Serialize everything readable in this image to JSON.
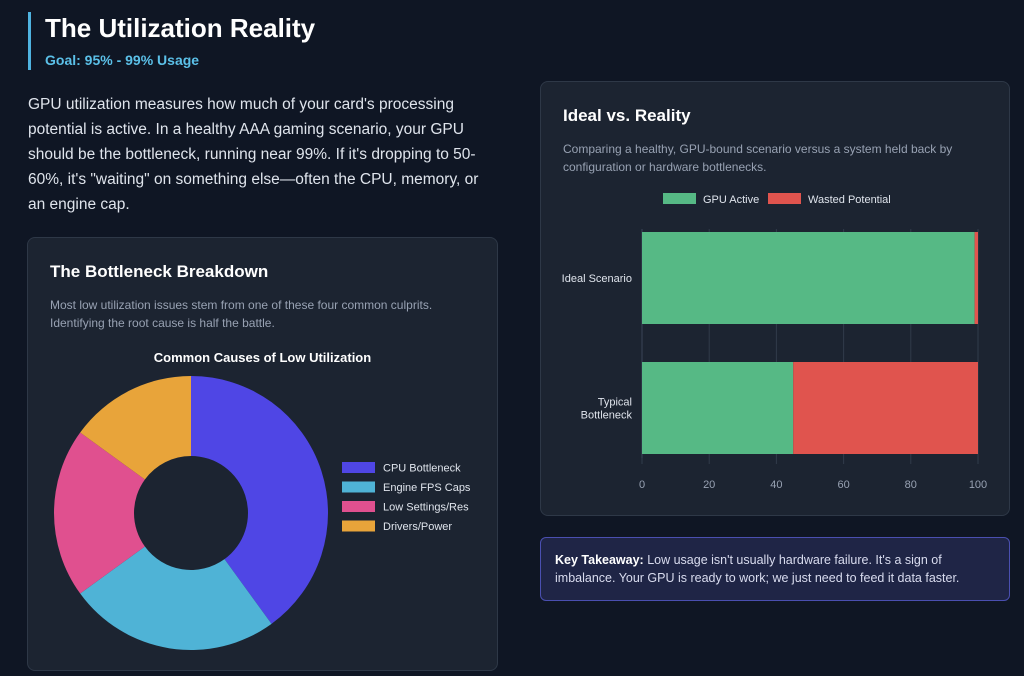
{
  "header": {
    "title": "The Utilization Reality",
    "goal": "Goal: 95% - 99% Usage"
  },
  "intro": "GPU utilization measures how much of your card's processing potential is active. In a healthy AAA gaming scenario, your GPU should be the bottleneck, running near 99%. If it's dropping to 50-60%, it's \"waiting\" on something else—often the CPU, memory, or an engine cap.",
  "breakdown": {
    "title": "The Bottleneck Breakdown",
    "description": "Most low utilization issues stem from one of these four common culprits. Identifying the root cause is half the battle."
  },
  "ideal": {
    "title": "Ideal vs. Reality",
    "description": "Comparing a healthy, GPU-bound scenario versus a system held back by configuration or hardware bottlenecks."
  },
  "takeaway": {
    "label": "Key Takeaway:",
    "text": " Low usage isn't usually hardware failure. It's a sign of imbalance. Your GPU is ready to work; we just need to feed it data faster."
  },
  "colors": {
    "accent": "#4fb3e0",
    "cpu": "#4f46e5",
    "engine": "#4fb3d6",
    "settings": "#e0508f",
    "drivers": "#e8a43a",
    "active": "#56b985",
    "wasted": "#e0544e"
  },
  "chart_data": [
    {
      "type": "pie",
      "donut": true,
      "title": "Common Causes of Low Utilization",
      "categories": [
        "CPU Bottleneck",
        "Engine FPS Caps",
        "Low Settings/Res",
        "Drivers/Power"
      ],
      "values": [
        40,
        25,
        20,
        15
      ],
      "colors": [
        "#4f46e5",
        "#4fb3d6",
        "#e0508f",
        "#e8a43a"
      ],
      "legend": "right"
    },
    {
      "type": "bar",
      "orientation": "horizontal",
      "stacked": true,
      "categories": [
        "Ideal Scenario",
        "Typical Bottleneck"
      ],
      "series": [
        {
          "name": "GPU Active",
          "values": [
            99,
            45
          ],
          "color": "#56b985"
        },
        {
          "name": "Wasted Potential",
          "values": [
            1,
            55
          ],
          "color": "#e0544e"
        }
      ],
      "xlim": [
        0,
        100
      ],
      "xticks": [
        0,
        20,
        40,
        60,
        80,
        100
      ],
      "legend": "top"
    }
  ]
}
